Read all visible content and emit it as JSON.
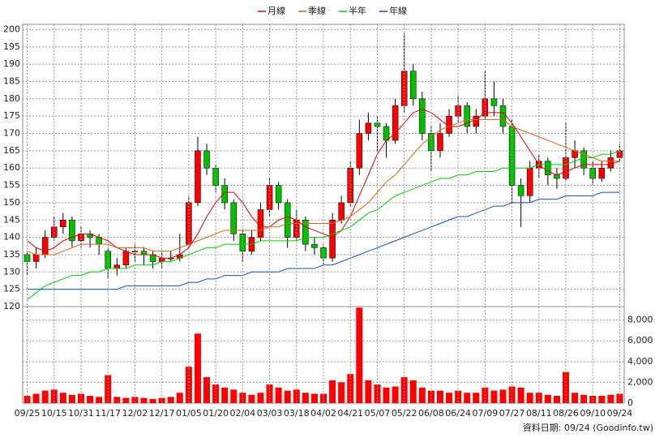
{
  "chart_data": [
    {
      "type": "candlestick",
      "open": [
        135,
        133,
        135,
        140,
        143,
        145,
        139,
        141,
        140,
        136,
        131,
        132,
        136,
        136,
        135,
        133,
        134,
        134,
        138,
        150,
        165,
        160,
        155,
        150,
        141,
        136,
        140,
        148,
        155,
        150,
        140,
        145,
        138,
        137,
        134,
        145,
        150,
        160,
        170,
        173,
        172,
        168,
        178,
        188,
        180,
        170,
        165,
        170,
        175,
        178,
        172,
        175,
        180,
        178,
        172,
        155,
        152,
        160,
        162,
        158,
        157,
        163,
        165,
        160,
        157,
        160,
        163
      ],
      "high": [
        136,
        137,
        142,
        146,
        147,
        146,
        143,
        142,
        141,
        137,
        134,
        137,
        138,
        137,
        136,
        136,
        136,
        141,
        152,
        169,
        167,
        161,
        157,
        151,
        142,
        142,
        150,
        157,
        156,
        151,
        148,
        146,
        140,
        138,
        147,
        152,
        162,
        174,
        176,
        175,
        173,
        180,
        199,
        190,
        182,
        172,
        173,
        177,
        181,
        179,
        177,
        188,
        185,
        180,
        174,
        157,
        162,
        164,
        163,
        160,
        173,
        168,
        166,
        162,
        162,
        165,
        167
      ],
      "low": [
        129,
        131,
        134,
        139,
        141,
        137,
        137,
        137,
        135,
        128,
        129,
        131,
        133,
        132,
        131,
        131,
        133,
        133,
        137,
        149,
        158,
        153,
        148,
        139,
        133,
        135,
        139,
        146,
        148,
        137,
        139,
        136,
        135,
        132,
        133,
        144,
        149,
        158,
        168,
        165,
        163,
        167,
        176,
        178,
        168,
        159,
        163,
        169,
        173,
        170,
        170,
        174,
        175,
        170,
        150,
        143,
        150,
        157,
        155,
        154,
        156,
        160,
        158,
        155,
        156,
        159,
        162
      ],
      "close": [
        133,
        135,
        140,
        143,
        145,
        139,
        141,
        140,
        138,
        131,
        132,
        136,
        136,
        135,
        133,
        134,
        134,
        135,
        150,
        165,
        160,
        155,
        150,
        141,
        136,
        140,
        148,
        155,
        150,
        140,
        145,
        138,
        137,
        134,
        145,
        150,
        160,
        170,
        173,
        172,
        168,
        178,
        188,
        180,
        170,
        165,
        170,
        175,
        178,
        172,
        175,
        180,
        178,
        172,
        155,
        152,
        160,
        162,
        158,
        157,
        163,
        165,
        160,
        157,
        160,
        163,
        165
      ],
      "up_color": "#ff0000",
      "down_color": "#00c000",
      "series": [
        {
          "name": "月線",
          "color": "#e00000",
          "values": [
            139,
            137,
            136,
            137,
            139,
            140,
            141,
            141,
            140,
            139,
            137,
            136,
            135,
            135,
            135,
            134,
            134,
            135,
            137,
            141,
            146,
            150,
            153,
            153,
            150,
            146,
            143,
            143,
            145,
            146,
            145,
            143,
            142,
            141,
            140,
            142,
            146,
            152,
            158,
            164,
            168,
            170,
            173,
            176,
            177,
            176,
            174,
            172,
            172,
            173,
            174,
            176,
            176,
            176,
            173,
            169,
            165,
            161,
            159,
            158,
            159,
            160,
            161,
            161,
            161,
            161,
            162
          ]
        },
        {
          "name": "季線",
          "color": "#e06010",
          "values": [
            136,
            135,
            135,
            135,
            136,
            137,
            138,
            138,
            138,
            138,
            137,
            137,
            137,
            137,
            136,
            136,
            136,
            137,
            138,
            139,
            140,
            141,
            142,
            142,
            142,
            142,
            142,
            143,
            143,
            144,
            144,
            144,
            144,
            144,
            144,
            145,
            146,
            148,
            150,
            153,
            156,
            158,
            161,
            164,
            167,
            169,
            171,
            172,
            173,
            174,
            174,
            174,
            174,
            174,
            172,
            171,
            170,
            169,
            168,
            167,
            166,
            165,
            164,
            163,
            162,
            162,
            162
          ]
        },
        {
          "name": "半年",
          "color": "#00cc00",
          "values": [
            122,
            124,
            126,
            127,
            128,
            129,
            129,
            130,
            130,
            131,
            131,
            131,
            132,
            132,
            132,
            133,
            133,
            134,
            135,
            136,
            137,
            137,
            138,
            138,
            138,
            138,
            139,
            139,
            139,
            139,
            139,
            140,
            140,
            140,
            141,
            142,
            143,
            145,
            147,
            148,
            150,
            152,
            153,
            154,
            155,
            156,
            157,
            157,
            158,
            158,
            159,
            159,
            159,
            160,
            160,
            160,
            160,
            161,
            161,
            161,
            161,
            162,
            163,
            163,
            164,
            164,
            165
          ]
        },
        {
          "name": "年線",
          "color": "#1050c0",
          "values": [
            125,
            125,
            125,
            125,
            125,
            125,
            125,
            125,
            125,
            125,
            125,
            126,
            126,
            126,
            126,
            126,
            126,
            126,
            127,
            127,
            128,
            128,
            129,
            129,
            129,
            130,
            130,
            130,
            130,
            131,
            131,
            131,
            131,
            132,
            132,
            133,
            134,
            135,
            136,
            137,
            138,
            139,
            140,
            141,
            142,
            143,
            144,
            145,
            146,
            146,
            147,
            148,
            149,
            149,
            150,
            150,
            150,
            151,
            151,
            151,
            152,
            152,
            152,
            152,
            153,
            153,
            153
          ]
        }
      ],
      "ylim": [
        120,
        201.5
      ],
      "yticks": [
        120,
        125,
        130,
        135,
        140,
        145,
        150,
        155,
        160,
        165,
        170,
        175,
        180,
        185,
        190,
        195,
        200
      ],
      "grid": true
    },
    {
      "type": "bar",
      "color": "#ff0000",
      "categories": [
        "09/25",
        null,
        null,
        "10/15",
        null,
        null,
        "10/31",
        null,
        null,
        "11/17",
        null,
        null,
        "12/02",
        null,
        null,
        "12/17",
        null,
        null,
        "01/05",
        null,
        null,
        "01/20",
        null,
        null,
        "02/04",
        null,
        null,
        "03/03",
        null,
        null,
        "03/18",
        null,
        null,
        "04/02",
        null,
        null,
        "04/21",
        null,
        null,
        "05/07",
        null,
        null,
        "05/22",
        null,
        null,
        "06/08",
        null,
        null,
        "06/24",
        null,
        null,
        "07/09",
        null,
        null,
        "07/27",
        null,
        null,
        "08/11",
        null,
        null,
        "08/26",
        null,
        null,
        "09/10",
        null,
        null,
        "09/24"
      ],
      "values": [
        700,
        900,
        1200,
        1300,
        1000,
        800,
        900,
        700,
        600,
        2700,
        600,
        500,
        600,
        500,
        400,
        500,
        600,
        1000,
        3500,
        6700,
        2500,
        1800,
        1500,
        1300,
        1000,
        800,
        1000,
        1800,
        1500,
        1200,
        1300,
        1000,
        900,
        900,
        2200,
        2000,
        2800,
        9200,
        2200,
        1800,
        1500,
        1600,
        2500,
        2200,
        1500,
        1200,
        1200,
        1000,
        1200,
        1000,
        1000,
        1500,
        1200,
        1300,
        1600,
        1500,
        1000,
        1000,
        800,
        700,
        3000,
        1000,
        800,
        700,
        700,
        800,
        900
      ],
      "ylim": [
        0,
        9300
      ],
      "yticks": [
        0,
        {
          "value": 2000,
          "label": "2,000"
        },
        {
          "value": 4000,
          "label": "4,000"
        },
        {
          "value": 6000,
          "label": "6,000"
        },
        {
          "value": 8000,
          "label": "8,000"
        }
      ],
      "grid": true
    }
  ],
  "footer": "資料日期: 09/24 (Goodinfo.tw)"
}
